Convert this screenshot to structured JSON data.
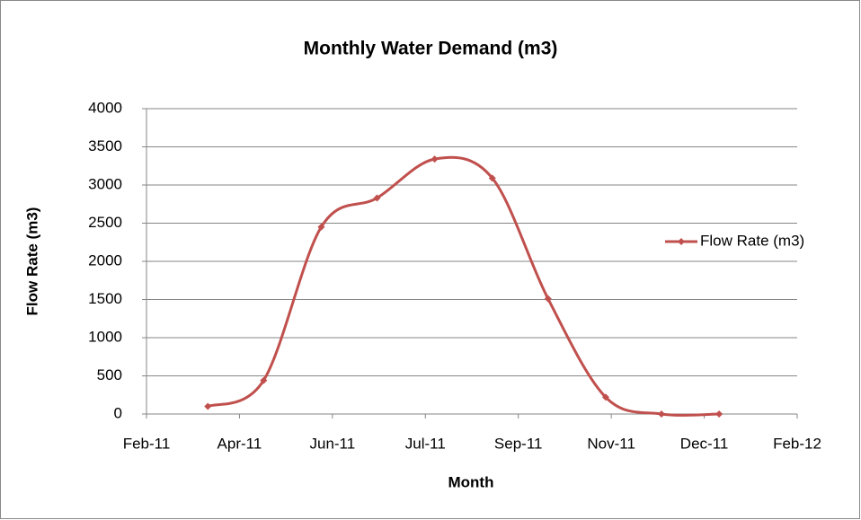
{
  "chart_data": {
    "type": "line",
    "title": "Monthly Water Demand (m3)",
    "x_label": "Month",
    "y_label": "Flow Rate (m3)",
    "x": [
      "2011-04",
      "2011-05",
      "2011-06",
      "2011-07",
      "2011-08",
      "2011-09",
      "2011-10",
      "2011-11",
      "2011-12",
      "2012-01"
    ],
    "series": [
      {
        "name": "Flow Rate (m3)",
        "color": "#c0504d",
        "values": [
          100,
          440,
          2450,
          2830,
          3340,
          3090,
          1510,
          220,
          0,
          0
        ]
      }
    ],
    "xlim": [
      "2011-02-27",
      "2012-02-12"
    ],
    "xticks": [
      {
        "value": "2011-02-27",
        "label": "Feb-11"
      },
      {
        "value": "2011-04-18",
        "label": "Apr-11"
      },
      {
        "value": "2011-06-07",
        "label": "Jun-11"
      },
      {
        "value": "2011-07-27",
        "label": "Jul-11"
      },
      {
        "value": "2011-09-15",
        "label": "Sep-11"
      },
      {
        "value": "2011-11-04",
        "label": "Nov-11"
      },
      {
        "value": "2011-12-24",
        "label": "Dec-11"
      },
      {
        "value": "2012-02-12",
        "label": "Feb-12"
      }
    ],
    "ylim": [
      0,
      4000
    ],
    "yticks": [
      0,
      500,
      1000,
      1500,
      2000,
      2500,
      3000,
      3500,
      4000
    ],
    "grid": true,
    "legend": "right",
    "smooth": true
  }
}
